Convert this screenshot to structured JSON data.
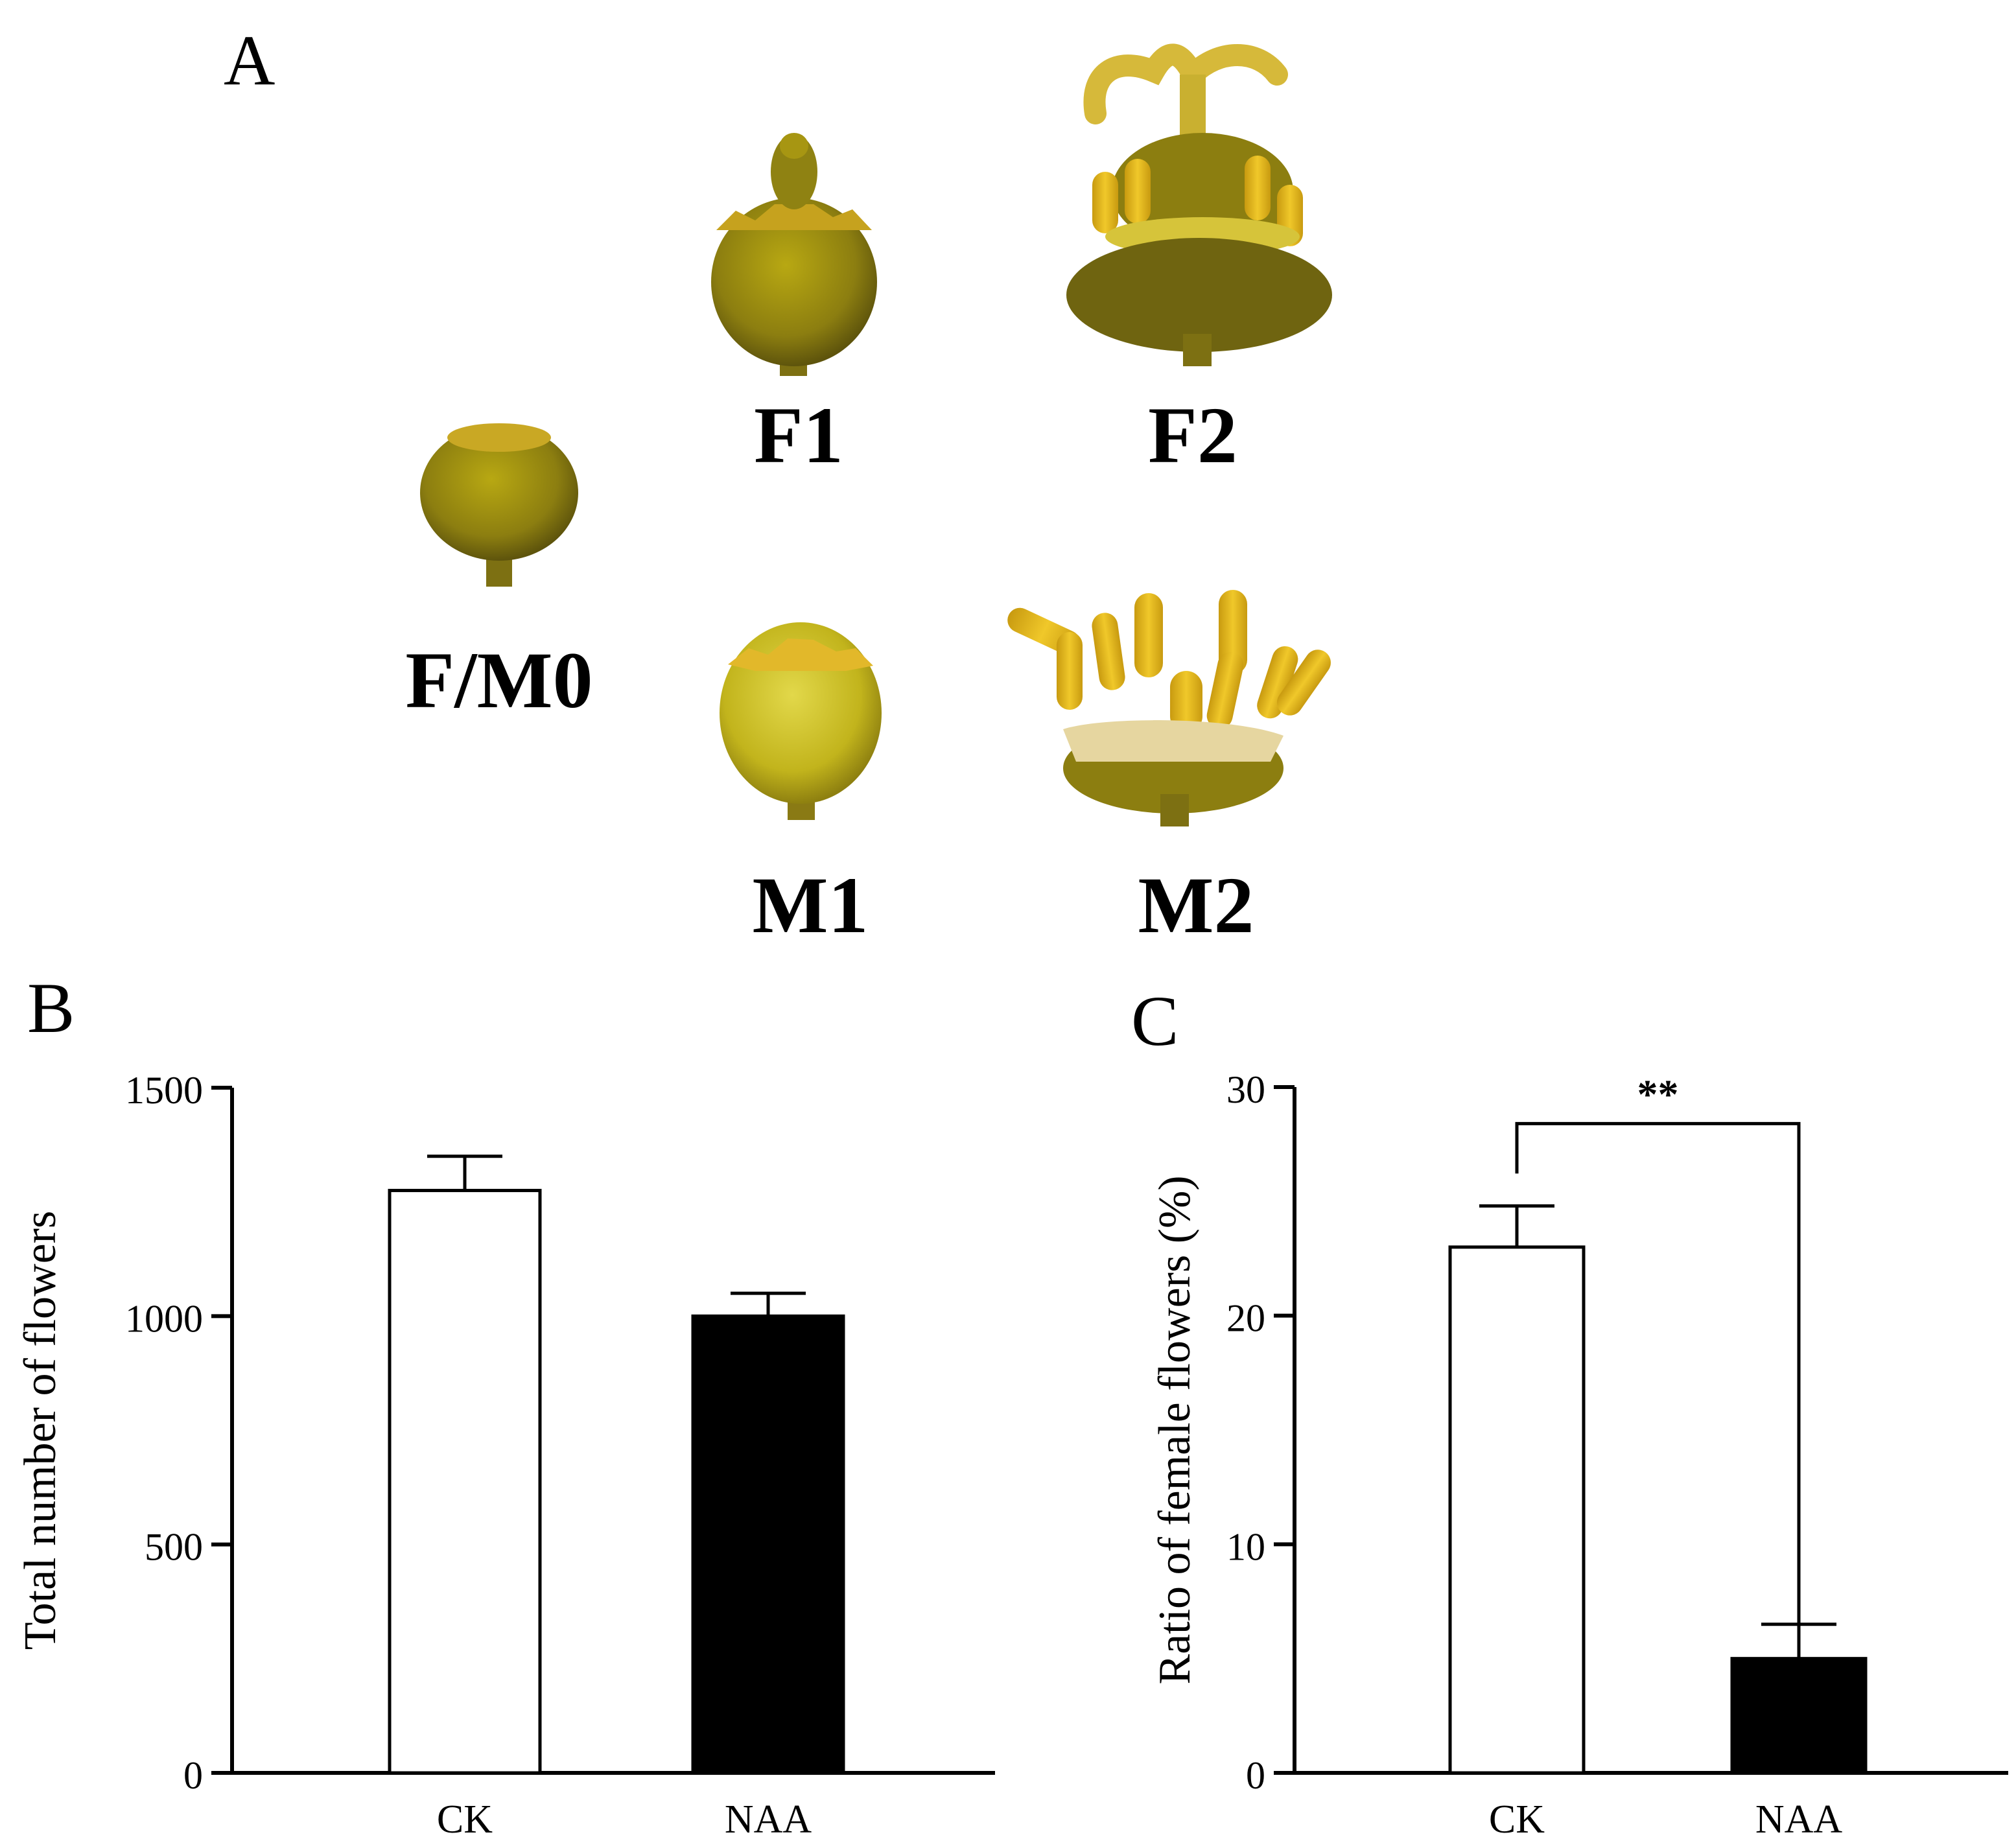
{
  "panel_a": {
    "letter": "A",
    "stages": [
      {
        "id": "f-m0",
        "label": "F/M0"
      },
      {
        "id": "f1",
        "label": "F1"
      },
      {
        "id": "f2",
        "label": "F2"
      },
      {
        "id": "m1",
        "label": "M1"
      },
      {
        "id": "m2",
        "label": "M2"
      }
    ],
    "colors": {
      "flower_dark": "#6e6410",
      "flower_mid": "#a0940f",
      "flower_light": "#d9c21c",
      "anther": "#e3b618",
      "stalk": "#8a7a14"
    }
  },
  "chart_data": [
    {
      "panel": "B",
      "type": "bar",
      "categories": [
        "CK",
        "NAA"
      ],
      "values": [
        1275,
        1000
      ],
      "error": [
        75,
        50
      ],
      "ylabel": "Total number of flowers",
      "xlabel": "",
      "ylim": [
        0,
        1500
      ],
      "yticks": [
        0,
        500,
        1000,
        1500
      ],
      "bar_fill": [
        "#ffffff",
        "#000000"
      ],
      "significance": ""
    },
    {
      "panel": "C",
      "type": "bar",
      "categories": [
        "CK",
        "NAA"
      ],
      "values": [
        23,
        5
      ],
      "error": [
        1.8,
        1.5
      ],
      "ylabel": "Ratio of female flowers (%)",
      "xlabel": "",
      "ylim": [
        0,
        30
      ],
      "yticks": [
        0,
        10,
        20,
        30
      ],
      "bar_fill": [
        "#ffffff",
        "#000000"
      ],
      "significance": "**"
    }
  ]
}
